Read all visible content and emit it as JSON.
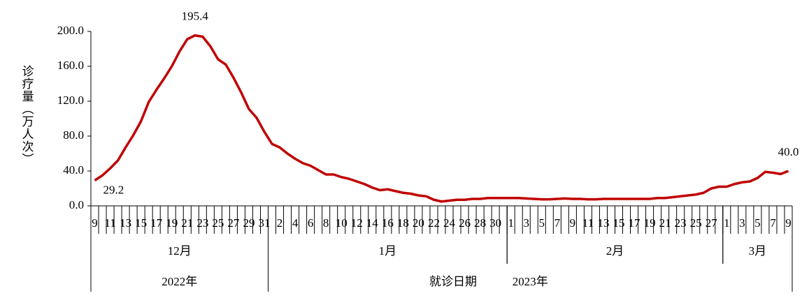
{
  "chart_data": {
    "type": "line",
    "y_label": "诊疗量（万人次）",
    "x_label": "就诊日期",
    "categories": [
      "9",
      null,
      "11",
      null,
      "13",
      null,
      "15",
      null,
      "17",
      null,
      "19",
      null,
      "21",
      null,
      "23",
      null,
      "25",
      null,
      "27",
      null,
      "29",
      null,
      "31",
      null,
      "2",
      null,
      "4",
      null,
      "6",
      null,
      "8",
      null,
      "10",
      null,
      "12",
      null,
      "14",
      null,
      "16",
      null,
      "18",
      null,
      "20",
      null,
      "22",
      null,
      "24",
      null,
      "26",
      null,
      "28",
      null,
      "30",
      null,
      "1",
      null,
      "3",
      null,
      "5",
      null,
      "7",
      null,
      "9",
      null,
      "11",
      null,
      "13",
      null,
      "15",
      null,
      "17",
      null,
      "19",
      null,
      "21",
      null,
      "23",
      null,
      "25",
      null,
      "27",
      null,
      "1",
      null,
      "3",
      null,
      "5",
      null,
      "7",
      null,
      "9"
    ],
    "month_groups": [
      {
        "label": "12月",
        "size": 23
      },
      {
        "label": "1月",
        "size": 31
      },
      {
        "label": "2月",
        "size": 28
      },
      {
        "label": "3月",
        "size": 9
      }
    ],
    "year_groups": [
      {
        "label": "2022年",
        "size": 1
      },
      {
        "label": "2023年",
        "size": 3
      }
    ],
    "series": [
      {
        "name": "诊疗量",
        "color": "#c00000",
        "values": [
          29.2,
          35,
          43,
          52,
          67,
          81,
          97,
          119,
          133,
          146,
          160,
          177,
          191,
          195.4,
          194,
          183,
          168,
          162,
          147,
          130,
          111,
          101,
          85,
          71,
          67,
          60,
          54,
          49,
          46,
          41,
          36,
          36,
          33,
          31,
          28,
          25,
          21,
          18,
          19,
          17,
          15,
          14,
          12,
          11,
          7,
          5,
          6,
          7,
          7,
          8,
          8,
          9,
          9,
          9,
          9,
          9,
          8.5,
          8,
          7.5,
          7.5,
          8,
          8.5,
          8,
          8,
          7.5,
          7.5,
          8,
          8,
          8,
          8,
          8,
          8,
          8,
          9,
          9,
          10,
          11,
          12,
          13,
          15,
          20,
          22,
          22,
          25,
          27,
          28,
          32,
          39,
          38,
          36.5,
          40
        ],
        "value_labels": [
          "29.2",
          null,
          null,
          null,
          null,
          null,
          null,
          null,
          null,
          null,
          null,
          null,
          null,
          "195.4",
          null,
          null,
          null,
          null,
          null,
          null,
          null,
          null,
          null,
          null,
          null,
          null,
          null,
          null,
          null,
          null,
          null,
          null,
          null,
          null,
          null,
          null,
          null,
          null,
          null,
          null,
          null,
          null,
          null,
          null,
          null,
          null,
          null,
          null,
          null,
          null,
          null,
          null,
          null,
          null,
          null,
          null,
          null,
          null,
          null,
          null,
          null,
          null,
          null,
          null,
          null,
          null,
          null,
          null,
          null,
          null,
          null,
          null,
          null,
          null,
          null,
          null,
          null,
          null,
          null,
          null,
          null,
          null,
          null,
          null,
          null,
          null,
          null,
          null,
          null,
          null,
          "40.0"
        ]
      }
    ],
    "ylim": [
      0,
      200
    ],
    "yticks": [
      {
        "value": 0,
        "label": "0.0"
      },
      {
        "value": 40,
        "label": "40.0"
      },
      {
        "value": 80,
        "label": "80.0"
      },
      {
        "value": 120,
        "label": "120.0"
      },
      {
        "value": 160,
        "label": "160.0"
      },
      {
        "value": 200,
        "label": "200.0"
      }
    ]
  }
}
